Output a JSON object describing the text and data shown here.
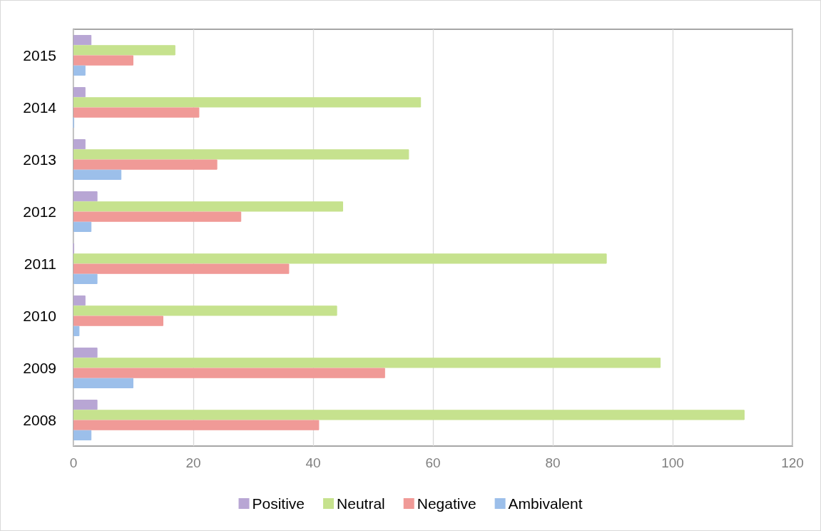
{
  "chart_data": {
    "type": "bar",
    "orientation": "horizontal",
    "categories": [
      "2015",
      "2014",
      "2013",
      "2012",
      "2011",
      "2010",
      "2009",
      "2008"
    ],
    "series": [
      {
        "name": "Positive",
        "color": "#b8a6d4",
        "values": [
          3,
          2,
          2,
          4,
          0,
          2,
          4,
          4
        ]
      },
      {
        "name": "Neutral",
        "color": "#c6e28e",
        "values": [
          17,
          58,
          56,
          45,
          89,
          44,
          98,
          112
        ]
      },
      {
        "name": "Negative",
        "color": "#f09a97",
        "values": [
          10,
          21,
          24,
          28,
          36,
          15,
          52,
          41
        ]
      },
      {
        "name": "Ambivalent",
        "color": "#9cbfea",
        "values": [
          2,
          0,
          8,
          3,
          4,
          1,
          10,
          3
        ]
      }
    ],
    "xlim": [
      0,
      120
    ],
    "xticks": [
      0,
      20,
      40,
      60,
      80,
      100,
      120
    ],
    "grid": "x",
    "legend": "bottom"
  }
}
